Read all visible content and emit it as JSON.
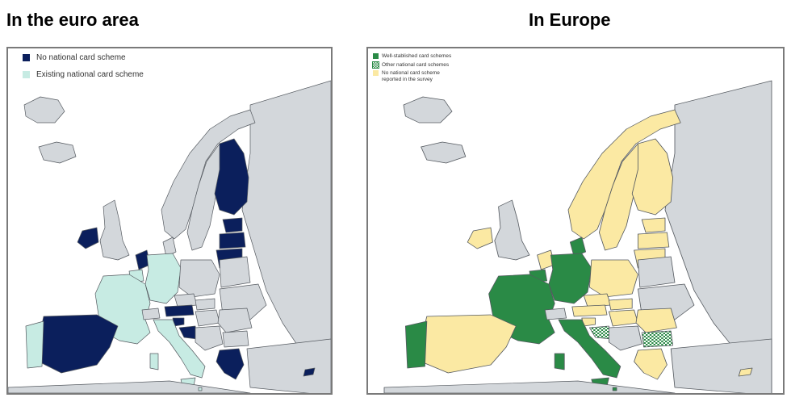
{
  "titles": {
    "left": "In the euro area",
    "right": "In Europe"
  },
  "left_map": {
    "legend": [
      {
        "label": "No national card scheme",
        "color": "#0b1f5c"
      },
      {
        "label": "Existing national card scheme",
        "color": "#c7ebe3"
      }
    ],
    "colors": {
      "sea": "#ffffff",
      "non_euro": "#d3d7db",
      "no_scheme": "#0b1f5c",
      "existing_scheme": "#c7ebe3",
      "border": "#555a60"
    }
  },
  "right_map": {
    "legend": [
      {
        "label": "Well-stablished card schemes",
        "color": "#2a8a46",
        "pattern": "solid"
      },
      {
        "label": "Other national card schemes",
        "color": "#2a8a46",
        "pattern": "checkered"
      },
      {
        "label": "No national card scheme\nreported in the survey",
        "color": "#fbe9a3",
        "pattern": "solid"
      }
    ],
    "colors": {
      "sea": "#ffffff",
      "non_eu": "#d3d7db",
      "well_established": "#2a8a46",
      "no_scheme_reported": "#fbe9a3",
      "border": "#555a60"
    }
  }
}
